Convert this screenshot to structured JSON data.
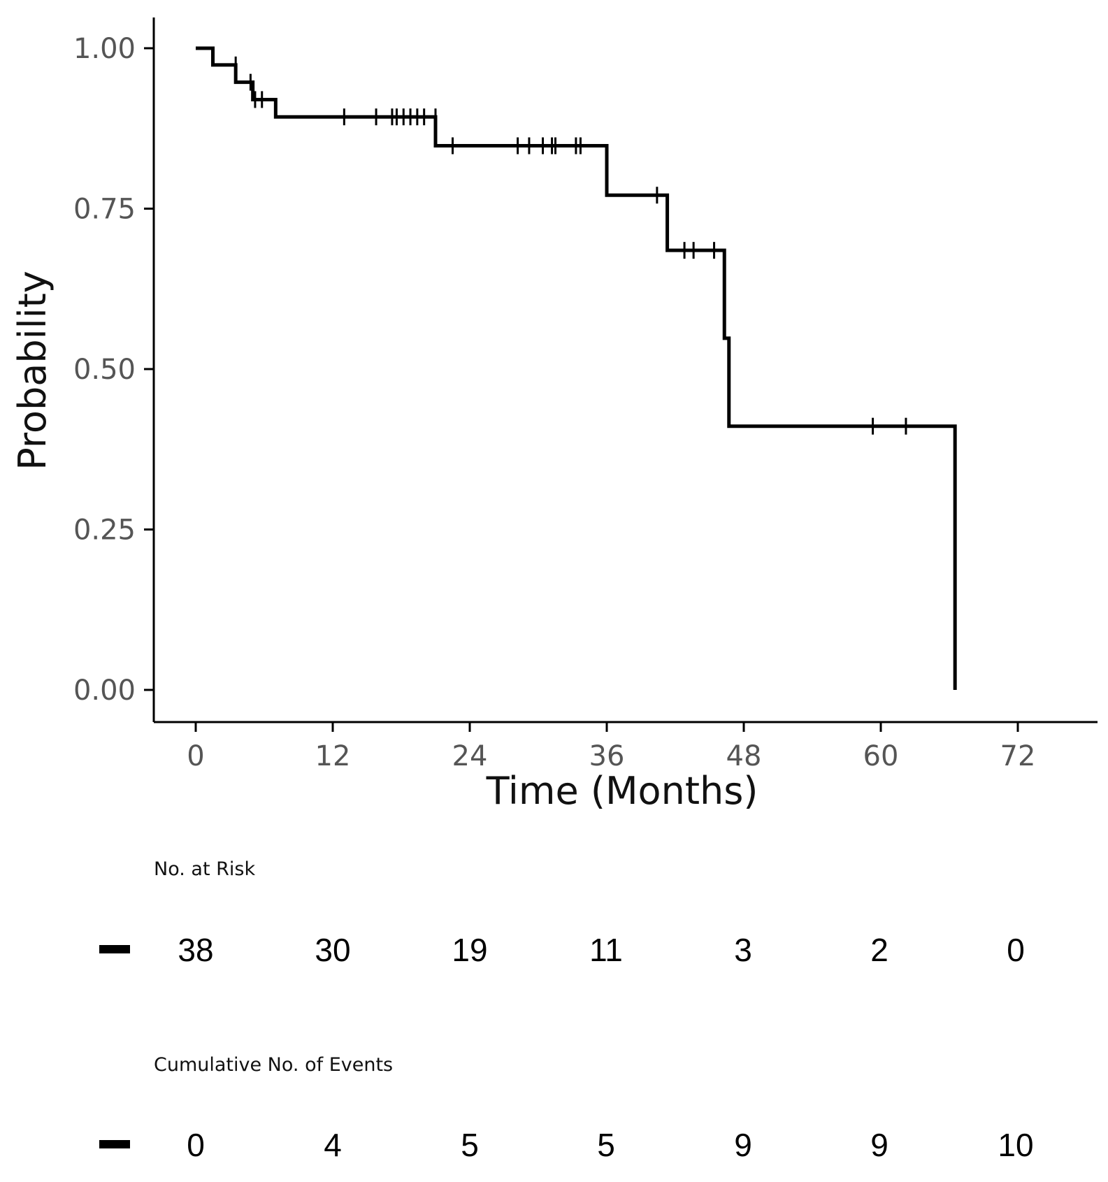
{
  "chart_data": {
    "type": "line",
    "subtype": "kaplan-meier",
    "title": "",
    "xlabel": "Time (Months)",
    "ylabel": "Probability",
    "xlim": [
      -3.5,
      78
    ],
    "ylim": [
      -0.05,
      1.05
    ],
    "x_ticks": [
      0,
      12,
      24,
      36,
      48,
      60,
      72
    ],
    "y_ticks": [
      0.0,
      0.25,
      0.5,
      0.75,
      1.0
    ],
    "y_tick_labels": [
      "0.00",
      "0.25",
      "0.50",
      "0.75",
      "1.00"
    ],
    "x_tick_labels": [
      "0",
      "12",
      "24",
      "36",
      "48",
      "60",
      "72"
    ],
    "line_color": "#000000",
    "steps": [
      {
        "x": 0,
        "y": 1.0
      },
      {
        "x": 1.5,
        "y": 0.974
      },
      {
        "x": 3.5,
        "y": 0.947
      },
      {
        "x": 5.0,
        "y": 0.92
      },
      {
        "x": 7.0,
        "y": 0.893
      },
      {
        "x": 21.0,
        "y": 0.848
      },
      {
        "x": 36.0,
        "y": 0.771
      },
      {
        "x": 41.3,
        "y": 0.685
      },
      {
        "x": 46.3,
        "y": 0.548
      },
      {
        "x": 46.7,
        "y": 0.411
      },
      {
        "x": 66.5,
        "y": 0.0
      }
    ],
    "end_x": 66.5,
    "censored": [
      {
        "x": 3.5,
        "y": 0.974
      },
      {
        "x": 4.8,
        "y": 0.947
      },
      {
        "x": 5.2,
        "y": 0.92
      },
      {
        "x": 5.8,
        "y": 0.92
      },
      {
        "x": 13.0,
        "y": 0.893
      },
      {
        "x": 15.8,
        "y": 0.893
      },
      {
        "x": 17.2,
        "y": 0.893
      },
      {
        "x": 17.6,
        "y": 0.893
      },
      {
        "x": 18.2,
        "y": 0.893
      },
      {
        "x": 18.8,
        "y": 0.893
      },
      {
        "x": 19.4,
        "y": 0.893
      },
      {
        "x": 20.0,
        "y": 0.893
      },
      {
        "x": 21.0,
        "y": 0.893
      },
      {
        "x": 22.5,
        "y": 0.848
      },
      {
        "x": 28.2,
        "y": 0.848
      },
      {
        "x": 29.2,
        "y": 0.848
      },
      {
        "x": 30.4,
        "y": 0.848
      },
      {
        "x": 31.2,
        "y": 0.848
      },
      {
        "x": 31.5,
        "y": 0.848
      },
      {
        "x": 33.3,
        "y": 0.848
      },
      {
        "x": 33.7,
        "y": 0.848
      },
      {
        "x": 40.4,
        "y": 0.771
      },
      {
        "x": 42.8,
        "y": 0.685
      },
      {
        "x": 43.6,
        "y": 0.685
      },
      {
        "x": 45.4,
        "y": 0.685
      },
      {
        "x": 59.3,
        "y": 0.411
      },
      {
        "x": 62.2,
        "y": 0.411
      }
    ]
  },
  "risk_table": {
    "at_risk_label": "No. at Risk",
    "at_risk": [
      "38",
      "30",
      "19",
      "11",
      "3",
      "2",
      "0"
    ],
    "events_label": "Cumulative No. of Events",
    "events": [
      "0",
      "4",
      "5",
      "5",
      "9",
      "9",
      "10"
    ]
  }
}
